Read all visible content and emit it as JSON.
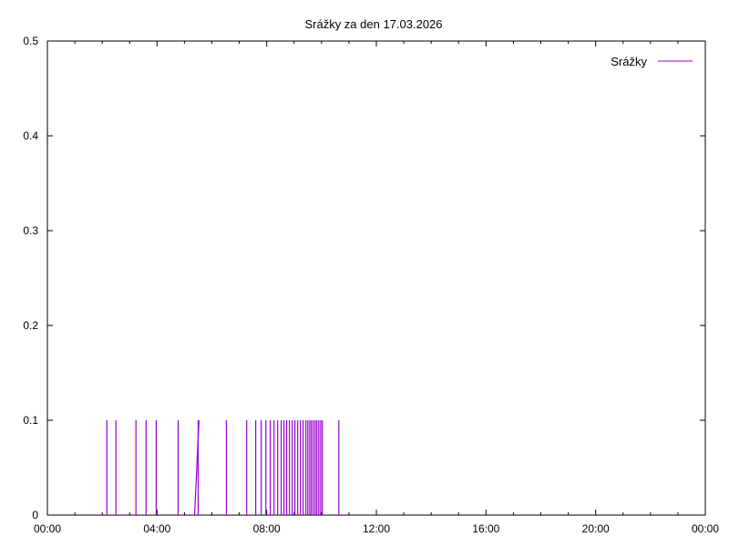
{
  "chart_data": {
    "type": "line",
    "title": "Srážky za den 17.03.2026",
    "xlabel": "",
    "ylabel": "",
    "xlim": [
      0,
      24
    ],
    "ylim": [
      0,
      0.5
    ],
    "x_ticks": [
      {
        "value": 0,
        "label": "00:00"
      },
      {
        "value": 4,
        "label": "04:00"
      },
      {
        "value": 8,
        "label": "08:00"
      },
      {
        "value": 12,
        "label": "12:00"
      },
      {
        "value": 16,
        "label": "16:00"
      },
      {
        "value": 20,
        "label": "20:00"
      },
      {
        "value": 24,
        "label": "00:00"
      }
    ],
    "y_ticks": [
      {
        "value": 0,
        "label": "0"
      },
      {
        "value": 0.1,
        "label": "0.1"
      },
      {
        "value": 0.2,
        "label": "0.2"
      },
      {
        "value": 0.3,
        "label": "0.3"
      },
      {
        "value": 0.4,
        "label": "0.4"
      },
      {
        "value": 0.5,
        "label": "0.5"
      }
    ],
    "grid": false,
    "legend": "top-right",
    "series": [
      {
        "name": "Srážky",
        "color": "#9400d3",
        "spike_hours": [
          2.17,
          2.5,
          3.23,
          3.6,
          3.97,
          4.77,
          5.5,
          6.53,
          7.27,
          7.6,
          7.8,
          7.97,
          8.13,
          8.27,
          8.4,
          8.53,
          8.63,
          8.73,
          8.83,
          8.93,
          9.03,
          9.13,
          9.23,
          9.33,
          9.43,
          9.5,
          9.57,
          9.63,
          9.7,
          9.77,
          9.83,
          9.9,
          9.97,
          10.03,
          10.63
        ],
        "spike_value": 0.1,
        "ramp": {
          "from_hour": 5.37,
          "to_hour": 5.53,
          "to_value": 0.1
        }
      }
    ]
  }
}
